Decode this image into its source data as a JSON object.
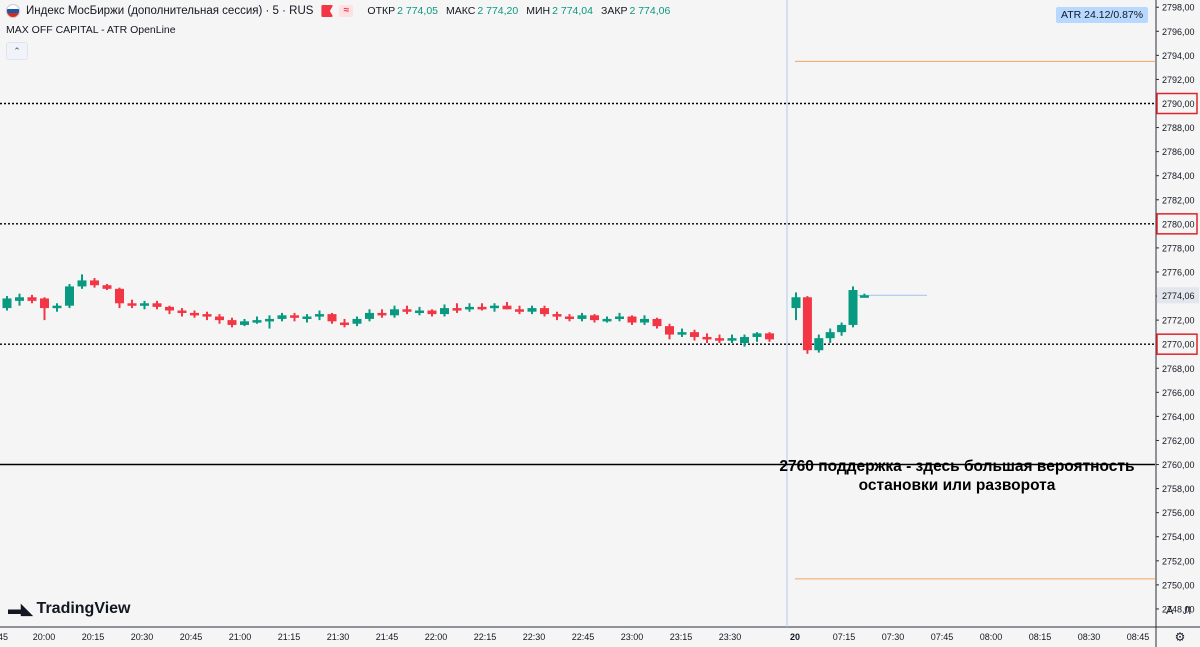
{
  "legend": {
    "title": "Индекс МосБиржи (дополнительная сессия) · 5 · RUS",
    "open_label": "ОТКР",
    "open": "2 774,05",
    "high_label": "МАКС",
    "high": "2 774,20",
    "low_label": "МИН",
    "low": "2 774,04",
    "close_label": "ЗАКР",
    "close": "2 774,06"
  },
  "indicator": "MAX OFF CAPITAL - ATR OpenLine",
  "atr_label": "ATR 24.12/0.87%",
  "annotation": {
    "line1": "2760 поддержка - здесь большая вероятность",
    "line2": "остановки или разворота"
  },
  "logo_text": "TradingView",
  "scale_buttons": {
    "auto": "A",
    "log": "Л"
  },
  "colors": {
    "up": "#089981",
    "down": "#f23645",
    "atr_line": "#f7a35c",
    "price_line": "#aac8f0",
    "axis_text": "#131722"
  },
  "chart_data": {
    "type": "candlestick",
    "y_ticks": [
      "2748,00",
      "2750,00",
      "2752,00",
      "2754,00",
      "2756,00",
      "2758,00",
      "2760,00",
      "2762,00",
      "2764,00",
      "2766,00",
      "2768,00",
      "2770,00",
      "2772,00",
      "2774,00",
      "2776,00",
      "2778,00",
      "2780,00",
      "2782,00",
      "2784,00",
      "2786,00",
      "2788,00",
      "2790,00",
      "2792,00",
      "2794,00",
      "2796,00",
      "2798,00"
    ],
    "y_range": [
      2746.5,
      2798.6
    ],
    "x_ticks": [
      "45",
      "20:00",
      "20:15",
      "20:30",
      "20:45",
      "21:00",
      "21:15",
      "21:30",
      "21:45",
      "22:00",
      "22:15",
      "22:30",
      "22:45",
      "23:00",
      "23:15",
      "23:30",
      "20",
      "07:15",
      "07:30",
      "07:45",
      "08:00",
      "08:15",
      "08:30",
      "08:45"
    ],
    "current_price": "2774,06",
    "marked_levels": [
      "2790,00",
      "2780,00",
      "2770,00"
    ],
    "level_lines": [
      2790,
      2780,
      2770
    ],
    "support_line": 2760,
    "atr_upper": 2793.5,
    "atr_lower": 2750.5,
    "candles": [
      {
        "o": 2773.0,
        "h": 2774.0,
        "l": 2772.8,
        "c": 2773.8
      },
      {
        "o": 2773.6,
        "h": 2774.2,
        "l": 2773.2,
        "c": 2773.9
      },
      {
        "o": 2773.9,
        "h": 2774.1,
        "l": 2773.4,
        "c": 2773.6
      },
      {
        "o": 2773.8,
        "h": 2773.9,
        "l": 2772.0,
        "c": 2773.0
      },
      {
        "o": 2773.0,
        "h": 2773.4,
        "l": 2772.7,
        "c": 2773.2
      },
      {
        "o": 2773.2,
        "h": 2775.0,
        "l": 2773.0,
        "c": 2774.8
      },
      {
        "o": 2774.8,
        "h": 2775.8,
        "l": 2774.6,
        "c": 2775.3
      },
      {
        "o": 2775.3,
        "h": 2775.5,
        "l": 2774.7,
        "c": 2774.9
      },
      {
        "o": 2774.9,
        "h": 2775.0,
        "l": 2774.5,
        "c": 2774.6
      },
      {
        "o": 2774.6,
        "h": 2774.7,
        "l": 2773.0,
        "c": 2773.4
      },
      {
        "o": 2773.4,
        "h": 2773.7,
        "l": 2773.0,
        "c": 2773.3
      },
      {
        "o": 2773.2,
        "h": 2773.6,
        "l": 2772.9,
        "c": 2773.4
      },
      {
        "o": 2773.4,
        "h": 2773.6,
        "l": 2772.9,
        "c": 2773.1
      },
      {
        "o": 2773.1,
        "h": 2773.2,
        "l": 2772.5,
        "c": 2772.8
      },
      {
        "o": 2772.8,
        "h": 2773.0,
        "l": 2772.3,
        "c": 2772.6
      },
      {
        "o": 2772.6,
        "h": 2772.8,
        "l": 2772.2,
        "c": 2772.5
      },
      {
        "o": 2772.5,
        "h": 2772.7,
        "l": 2772.0,
        "c": 2772.3
      },
      {
        "o": 2772.3,
        "h": 2772.5,
        "l": 2771.7,
        "c": 2772.0
      },
      {
        "o": 2772.0,
        "h": 2772.2,
        "l": 2771.4,
        "c": 2771.6
      },
      {
        "o": 2771.6,
        "h": 2772.1,
        "l": 2771.5,
        "c": 2771.9
      },
      {
        "o": 2771.9,
        "h": 2772.3,
        "l": 2771.7,
        "c": 2772.0
      },
      {
        "o": 2771.9,
        "h": 2772.4,
        "l": 2771.3,
        "c": 2772.1
      },
      {
        "o": 2772.1,
        "h": 2772.6,
        "l": 2771.9,
        "c": 2772.4
      },
      {
        "o": 2772.4,
        "h": 2772.6,
        "l": 2771.9,
        "c": 2772.2
      },
      {
        "o": 2772.1,
        "h": 2772.5,
        "l": 2771.8,
        "c": 2772.3
      },
      {
        "o": 2772.3,
        "h": 2772.8,
        "l": 2772.0,
        "c": 2772.5
      },
      {
        "o": 2772.5,
        "h": 2772.6,
        "l": 2771.7,
        "c": 2771.9
      },
      {
        "o": 2771.8,
        "h": 2772.1,
        "l": 2771.4,
        "c": 2771.7
      },
      {
        "o": 2771.7,
        "h": 2772.3,
        "l": 2771.5,
        "c": 2772.1
      },
      {
        "o": 2772.1,
        "h": 2772.9,
        "l": 2771.9,
        "c": 2772.6
      },
      {
        "o": 2772.6,
        "h": 2772.9,
        "l": 2772.2,
        "c": 2772.4
      },
      {
        "o": 2772.4,
        "h": 2773.2,
        "l": 2772.2,
        "c": 2772.9
      },
      {
        "o": 2772.9,
        "h": 2773.2,
        "l": 2772.5,
        "c": 2772.7
      },
      {
        "o": 2772.7,
        "h": 2773.1,
        "l": 2772.4,
        "c": 2772.8
      },
      {
        "o": 2772.8,
        "h": 2772.9,
        "l": 2772.3,
        "c": 2772.5
      },
      {
        "o": 2772.5,
        "h": 2773.3,
        "l": 2772.3,
        "c": 2773.0
      },
      {
        "o": 2773.0,
        "h": 2773.4,
        "l": 2772.6,
        "c": 2772.9
      },
      {
        "o": 2772.9,
        "h": 2773.4,
        "l": 2772.7,
        "c": 2773.1
      },
      {
        "o": 2773.1,
        "h": 2773.4,
        "l": 2772.8,
        "c": 2773.0
      },
      {
        "o": 2773.0,
        "h": 2773.4,
        "l": 2772.7,
        "c": 2773.2
      },
      {
        "o": 2773.2,
        "h": 2773.5,
        "l": 2772.9,
        "c": 2772.9
      },
      {
        "o": 2772.9,
        "h": 2773.2,
        "l": 2772.5,
        "c": 2772.7
      },
      {
        "o": 2772.7,
        "h": 2773.2,
        "l": 2772.5,
        "c": 2773.0
      },
      {
        "o": 2773.0,
        "h": 2773.2,
        "l": 2772.3,
        "c": 2772.5
      },
      {
        "o": 2772.5,
        "h": 2772.7,
        "l": 2772.0,
        "c": 2772.3
      },
      {
        "o": 2772.3,
        "h": 2772.5,
        "l": 2771.9,
        "c": 2772.1
      },
      {
        "o": 2772.1,
        "h": 2772.6,
        "l": 2771.9,
        "c": 2772.4
      },
      {
        "o": 2772.4,
        "h": 2772.5,
        "l": 2771.8,
        "c": 2772.0
      },
      {
        "o": 2772.0,
        "h": 2772.3,
        "l": 2771.8,
        "c": 2772.1
      },
      {
        "o": 2772.1,
        "h": 2772.6,
        "l": 2771.9,
        "c": 2772.3
      },
      {
        "o": 2772.3,
        "h": 2772.4,
        "l": 2771.6,
        "c": 2771.8
      },
      {
        "o": 2771.8,
        "h": 2772.4,
        "l": 2771.6,
        "c": 2772.1
      },
      {
        "o": 2772.1,
        "h": 2772.2,
        "l": 2771.3,
        "c": 2771.5
      },
      {
        "o": 2771.5,
        "h": 2771.7,
        "l": 2770.4,
        "c": 2770.8
      },
      {
        "o": 2770.8,
        "h": 2771.3,
        "l": 2770.6,
        "c": 2771.0
      },
      {
        "o": 2771.0,
        "h": 2771.2,
        "l": 2770.3,
        "c": 2770.6
      },
      {
        "o": 2770.6,
        "h": 2770.9,
        "l": 2770.1,
        "c": 2770.5
      },
      {
        "o": 2770.5,
        "h": 2770.8,
        "l": 2770.1,
        "c": 2770.4
      },
      {
        "o": 2770.4,
        "h": 2770.8,
        "l": 2770.1,
        "c": 2770.5
      },
      {
        "o": 2770.1,
        "h": 2770.8,
        "l": 2769.8,
        "c": 2770.6
      },
      {
        "o": 2770.6,
        "h": 2771.0,
        "l": 2770.2,
        "c": 2770.9
      },
      {
        "o": 2770.9,
        "h": 2771.0,
        "l": 2770.2,
        "c": 2770.4
      },
      {
        "o": 2773.0,
        "h": 2774.3,
        "l": 2772.0,
        "c": 2773.9
      },
      {
        "o": 2773.9,
        "h": 2774.0,
        "l": 2769.2,
        "c": 2769.5
      },
      {
        "o": 2769.5,
        "h": 2770.8,
        "l": 2769.3,
        "c": 2770.5
      },
      {
        "o": 2770.5,
        "h": 2771.3,
        "l": 2770.1,
        "c": 2771.0
      },
      {
        "o": 2771.0,
        "h": 2771.8,
        "l": 2770.7,
        "c": 2771.6
      },
      {
        "o": 2771.6,
        "h": 2774.8,
        "l": 2771.4,
        "c": 2774.5
      },
      {
        "o": 2774.05,
        "h": 2774.2,
        "l": 2774.04,
        "c": 2774.06
      }
    ]
  }
}
